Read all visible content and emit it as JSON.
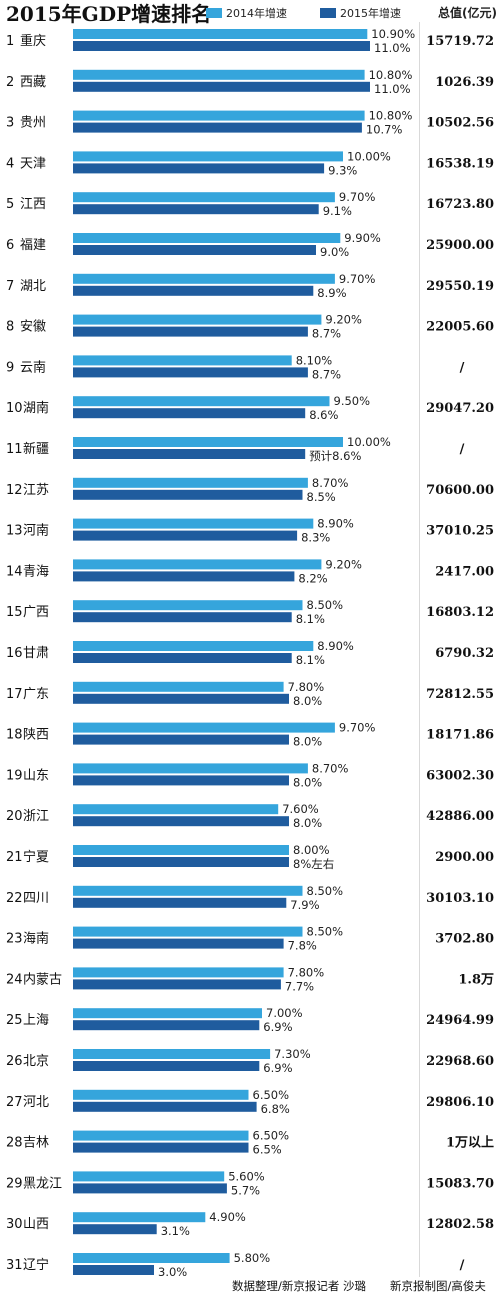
{
  "title": "2015年GDP增速排名",
  "legend": {
    "s2014": "2014年增速",
    "s2015": "2015年增速"
  },
  "total_header": "总值(亿元)",
  "credits": {
    "left": "数据整理/新京报记者 沙璐",
    "right": "新京报制图/高俊夫"
  },
  "colors": {
    "s2014": "#35a5dc",
    "s2015": "#1f5c9e",
    "text": "#222222"
  },
  "chart_data": {
    "type": "bar",
    "orientation": "horizontal",
    "title": "2015年GDP增速排名",
    "xlim": [
      0,
      12
    ],
    "series": [
      {
        "name": "2014年增速",
        "values": [
          10.9,
          10.8,
          10.8,
          10.0,
          9.7,
          9.9,
          9.7,
          9.2,
          8.1,
          9.5,
          10.0,
          8.7,
          8.9,
          9.2,
          8.5,
          8.9,
          7.8,
          9.7,
          8.7,
          7.6,
          8.0,
          8.5,
          8.5,
          7.8,
          7.0,
          7.3,
          6.5,
          6.5,
          5.6,
          4.9,
          5.8
        ]
      },
      {
        "name": "2015年增速",
        "values": [
          11.0,
          11.0,
          10.7,
          9.3,
          9.1,
          9.0,
          8.9,
          8.7,
          8.7,
          8.6,
          8.6,
          8.5,
          8.3,
          8.2,
          8.1,
          8.1,
          8.0,
          8.0,
          8.0,
          8.0,
          8.0,
          7.9,
          7.8,
          7.7,
          6.9,
          6.9,
          6.8,
          6.5,
          5.7,
          3.1,
          3.0
        ]
      }
    ],
    "rows": [
      {
        "rank": "1",
        "province": "重庆",
        "label2014": "10.90%",
        "label2015": "11.0%",
        "total": "15719.72"
      },
      {
        "rank": "2",
        "province": "西藏",
        "label2014": "10.80%",
        "label2015": "11.0%",
        "total": "1026.39"
      },
      {
        "rank": "3",
        "province": "贵州",
        "label2014": "10.80%",
        "label2015": "10.7%",
        "total": "10502.56"
      },
      {
        "rank": "4",
        "province": "天津",
        "label2014": "10.00%",
        "label2015": "9.3%",
        "total": "16538.19"
      },
      {
        "rank": "5",
        "province": "江西",
        "label2014": "9.70%",
        "label2015": "9.1%",
        "total": "16723.80"
      },
      {
        "rank": "6",
        "province": "福建",
        "label2014": "9.90%",
        "label2015": "9.0%",
        "total": "25900.00"
      },
      {
        "rank": "7",
        "province": "湖北",
        "label2014": "9.70%",
        "label2015": "8.9%",
        "total": "29550.19"
      },
      {
        "rank": "8",
        "province": "安徽",
        "label2014": "9.20%",
        "label2015": "8.7%",
        "total": "22005.60"
      },
      {
        "rank": "9",
        "province": "云南",
        "label2014": "8.10%",
        "label2015": "8.7%",
        "total": "/"
      },
      {
        "rank": "10",
        "province": "湖南",
        "label2014": "9.50%",
        "label2015": "8.6%",
        "total": "29047.20"
      },
      {
        "rank": "11",
        "province": "新疆",
        "label2014": "10.00%",
        "label2015": "预计8.6%",
        "total": "/"
      },
      {
        "rank": "12",
        "province": "江苏",
        "label2014": "8.70%",
        "label2015": "8.5%",
        "total": "70600.00"
      },
      {
        "rank": "13",
        "province": "河南",
        "label2014": "8.90%",
        "label2015": "8.3%",
        "total": "37010.25"
      },
      {
        "rank": "14",
        "province": "青海",
        "label2014": "9.20%",
        "label2015": "8.2%",
        "total": "2417.00"
      },
      {
        "rank": "15",
        "province": "广西",
        "label2014": "8.50%",
        "label2015": "8.1%",
        "total": "16803.12"
      },
      {
        "rank": "16",
        "province": "甘肃",
        "label2014": "8.90%",
        "label2015": "8.1%",
        "total": "6790.32"
      },
      {
        "rank": "17",
        "province": "广东",
        "label2014": "7.80%",
        "label2015": "8.0%",
        "total": "72812.55"
      },
      {
        "rank": "18",
        "province": "陕西",
        "label2014": "9.70%",
        "label2015": "8.0%",
        "total": "18171.86"
      },
      {
        "rank": "19",
        "province": "山东",
        "label2014": "8.70%",
        "label2015": "8.0%",
        "total": "63002.30"
      },
      {
        "rank": "20",
        "province": "浙江",
        "label2014": "7.60%",
        "label2015": "8.0%",
        "total": "42886.00"
      },
      {
        "rank": "21",
        "province": "宁夏",
        "label2014": "8.00%",
        "label2015": "8%左右",
        "total": "2900.00"
      },
      {
        "rank": "22",
        "province": "四川",
        "label2014": "8.50%",
        "label2015": "7.9%",
        "total": "30103.10"
      },
      {
        "rank": "23",
        "province": "海南",
        "label2014": "8.50%",
        "label2015": "7.8%",
        "total": "3702.80"
      },
      {
        "rank": "24",
        "province": "内蒙古",
        "label2014": "7.80%",
        "label2015": "7.7%",
        "total": "1.8万"
      },
      {
        "rank": "25",
        "province": "上海",
        "label2014": "7.00%",
        "label2015": "6.9%",
        "total": "24964.99"
      },
      {
        "rank": "26",
        "province": "北京",
        "label2014": "7.30%",
        "label2015": "6.9%",
        "total": "22968.60"
      },
      {
        "rank": "27",
        "province": "河北",
        "label2014": "6.50%",
        "label2015": "6.8%",
        "total": "29806.10"
      },
      {
        "rank": "28",
        "province": "吉林",
        "label2014": "6.50%",
        "label2015": "6.5%",
        "total": "1万以上"
      },
      {
        "rank": "29",
        "province": "黑龙江",
        "label2014": "5.60%",
        "label2015": "5.7%",
        "total": "15083.70"
      },
      {
        "rank": "30",
        "province": "山西",
        "label2014": "4.90%",
        "label2015": "3.1%",
        "total": "12802.58"
      },
      {
        "rank": "31",
        "province": "辽宁",
        "label2014": "5.80%",
        "label2015": "3.0%",
        "total": "/"
      }
    ]
  }
}
